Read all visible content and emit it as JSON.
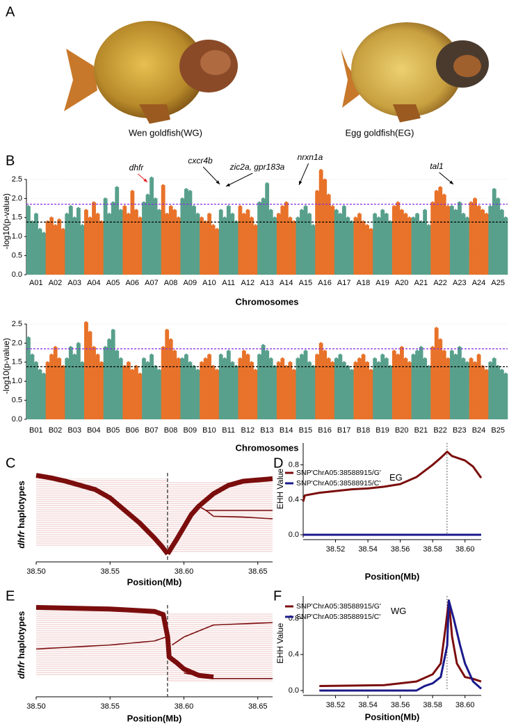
{
  "panels": [
    "A",
    "B",
    "C",
    "D",
    "E",
    "F"
  ],
  "photos": [
    {
      "caption": "Wen goldfish(WG)"
    },
    {
      "caption": "Egg goldfish(EG)"
    }
  ],
  "chart_data": [
    {
      "type": "manhattan",
      "xlabel": "Chromosomes",
      "ylabel": "-log10(p-value)",
      "colors": [
        "#58a08c",
        "#e8722a"
      ],
      "grid": true,
      "ylim": [
        0,
        2.8
      ],
      "yticks": [
        {
          "value": 0,
          "label": "0.0"
        },
        0.5,
        {
          "value": 1,
          "label": "1.0"
        },
        1.5,
        {
          "value": 2,
          "label": "2.0"
        },
        2.5
      ],
      "thresholds": [
        {
          "value": 1.85,
          "color": "#8a2be2"
        },
        {
          "value": 1.38,
          "color": "#000000"
        }
      ],
      "annotations": [
        {
          "text": "dhfr",
          "color": "#e31a1c"
        },
        {
          "text": "cxcr4b",
          "color": "#000000"
        },
        {
          "text": "zic2a, gpr183a",
          "color": "#000000"
        },
        {
          "text": "nrxn1a",
          "color": "#000000"
        },
        {
          "text": "tal1",
          "color": "#000000"
        }
      ],
      "categories": [
        "A01",
        "A02",
        "A03",
        "A04",
        "A05",
        "A06",
        "A07",
        "A08",
        "A09",
        "A10",
        "A11",
        "A12",
        "A13",
        "A14",
        "A15",
        "A16",
        "A17",
        "A18",
        "A19",
        "A20",
        "A21",
        "A22",
        "A23",
        "A24",
        "A25"
      ],
      "values": [
        [
          1.8,
          1.4,
          1.6,
          1.2,
          1.1
        ],
        [
          1.4,
          1.5,
          1.3,
          1.45,
          1.2
        ],
        [
          1.6,
          1.8,
          1.5,
          1.75,
          1.3
        ],
        [
          1.7,
          1.5,
          1.9,
          1.6,
          1.4
        ],
        [
          2.0,
          1.6,
          1.9,
          2.3,
          1.7
        ],
        [
          1.8,
          1.6,
          2.2,
          1.7,
          1.5
        ],
        [
          1.9,
          2.1,
          2.55,
          2.0,
          1.7
        ],
        [
          2.35,
          1.6,
          1.8,
          1.7,
          1.5
        ],
        [
          2.0,
          2.25,
          2.2,
          1.8,
          1.6
        ],
        [
          1.5,
          1.4,
          1.6,
          1.3,
          1.2
        ],
        [
          1.7,
          1.5,
          1.8,
          1.6,
          1.4
        ],
        [
          1.8,
          1.6,
          1.7,
          1.5,
          1.3
        ],
        [
          1.9,
          2.0,
          2.4,
          1.7,
          1.5
        ],
        [
          1.6,
          1.8,
          1.9,
          1.5,
          1.4
        ],
        [
          1.5,
          1.7,
          1.8,
          1.6,
          1.3
        ],
        [
          2.2,
          2.75,
          2.5,
          2.1,
          1.8
        ],
        [
          1.7,
          1.6,
          1.8,
          1.5,
          1.4
        ],
        [
          1.5,
          1.6,
          1.4,
          1.3,
          1.2
        ],
        [
          1.6,
          1.5,
          1.7,
          1.6,
          1.4
        ],
        [
          1.8,
          1.9,
          1.7,
          1.6,
          1.5
        ],
        [
          1.5,
          1.6,
          1.4,
          1.7,
          1.3
        ],
        [
          1.9,
          2.2,
          2.3,
          2.1,
          1.8
        ],
        [
          1.8,
          1.7,
          1.9,
          1.6,
          1.5
        ],
        [
          1.9,
          2.0,
          1.8,
          1.7,
          1.6
        ],
        [
          1.8,
          2.25,
          2.0,
          1.7,
          1.5
        ]
      ]
    },
    {
      "type": "manhattan",
      "xlabel": "Chromosomes",
      "ylabel": "-log10(p-value)",
      "colors": [
        "#58a08c",
        "#e8722a"
      ],
      "grid": true,
      "ylim": [
        0,
        2.8
      ],
      "yticks": [
        {
          "value": 0,
          "label": "0.0"
        },
        0.5,
        {
          "value": 1,
          "label": "1.0"
        },
        1.5,
        {
          "value": 2,
          "label": "2.0"
        },
        2.5
      ],
      "thresholds": [
        {
          "value": 1.85,
          "color": "#8a2be2"
        },
        {
          "value": 1.38,
          "color": "#000000"
        }
      ],
      "annotations": [],
      "categories": [
        "B01",
        "B02",
        "B03",
        "B04",
        "B05",
        "B06",
        "B07",
        "B08",
        "B09",
        "B10",
        "B11",
        "B12",
        "B13",
        "B14",
        "B15",
        "B16",
        "B17",
        "B18",
        "B19",
        "B20",
        "B21",
        "B22",
        "B23",
        "B24",
        "B25"
      ],
      "values": [
        [
          2.15,
          1.7,
          1.5,
          1.3,
          1.2
        ],
        [
          1.5,
          1.7,
          1.9,
          1.6,
          1.4
        ],
        [
          1.6,
          1.9,
          1.7,
          2.0,
          1.5
        ],
        [
          2.55,
          2.3,
          1.9,
          1.7,
          1.5
        ],
        [
          1.9,
          2.1,
          2.35,
          1.8,
          1.6
        ],
        [
          1.4,
          1.5,
          1.3,
          1.4,
          1.2
        ],
        [
          1.6,
          1.5,
          1.7,
          1.4,
          1.3
        ],
        [
          1.9,
          2.35,
          2.1,
          1.8,
          1.6
        ],
        [
          1.6,
          1.7,
          1.5,
          1.4,
          1.3
        ],
        [
          1.5,
          1.6,
          1.7,
          1.4,
          1.3
        ],
        [
          1.7,
          1.6,
          1.8,
          1.5,
          1.4
        ],
        [
          1.6,
          1.8,
          1.7,
          1.5,
          1.3
        ],
        [
          1.7,
          1.95,
          1.8,
          1.6,
          1.4
        ],
        [
          1.5,
          1.6,
          1.4,
          1.5,
          1.3
        ],
        [
          1.6,
          1.7,
          1.8,
          1.5,
          1.4
        ],
        [
          1.7,
          2.0,
          1.8,
          1.6,
          1.5
        ],
        [
          1.6,
          1.7,
          1.5,
          1.4,
          1.3
        ],
        [
          1.5,
          1.6,
          1.7,
          1.5,
          1.3
        ],
        [
          1.6,
          1.5,
          1.7,
          1.6,
          1.4
        ],
        [
          1.8,
          1.7,
          1.9,
          1.6,
          1.5
        ],
        [
          1.7,
          1.8,
          1.9,
          1.6,
          1.4
        ],
        [
          1.9,
          2.4,
          2.1,
          1.8,
          1.6
        ],
        [
          1.8,
          1.7,
          1.9,
          1.6,
          1.5
        ],
        [
          1.6,
          1.5,
          1.7,
          1.4,
          1.3
        ],
        [
          1.5,
          1.6,
          1.4,
          1.3,
          1.2
        ]
      ]
    },
    {
      "type": "haplotype",
      "xlabel": "Position(Mb)",
      "ylabel_gene": "dhfr",
      "ylabel": "haplotypes",
      "xlim": [
        38.5,
        38.66
      ],
      "ylim": [
        0,
        1
      ],
      "xticks": [
        {
          "value": 38.5,
          "label": "38.50"
        },
        38.55,
        {
          "value": 38.6,
          "label": "38.60"
        },
        38.65
      ],
      "vline": 38.5889,
      "series": [
        {
          "color": "#7b0d0d",
          "values": [
            0.97,
            0.94,
            0.9,
            0.85,
            0.8,
            0.7,
            0.55,
            0.4,
            0.22,
            0.12,
            0.03
          ],
          "x": [
            38.5,
            38.51,
            38.52,
            38.53,
            38.54,
            38.55,
            38.56,
            38.57,
            38.58,
            38.585,
            38.589
          ]
        },
        {
          "color": "#7b0d0d",
          "values": [
            0.03,
            0.2,
            0.35,
            0.5,
            0.6,
            0.75,
            0.85,
            0.9,
            0.93
          ],
          "x": [
            38.589,
            38.595,
            38.6,
            38.605,
            38.61,
            38.62,
            38.63,
            38.64,
            38.66
          ]
        },
        {
          "color": "#7b0d0d",
          "values": [
            0.6,
            0.55,
            0.55,
            0.55
          ],
          "x": [
            38.61,
            38.615,
            38.62,
            38.66
          ]
        },
        {
          "color": "#7b0d0d",
          "values": [
            0.55,
            0.48,
            0.47,
            0.45
          ],
          "x": [
            38.615,
            38.62,
            38.64,
            38.66
          ]
        }
      ]
    },
    {
      "type": "line",
      "xlabel": "Position(Mb)",
      "ylabel": "EHH Value",
      "group": "EG",
      "xlim": [
        38.5,
        38.61
      ],
      "ylim": [
        0,
        1.05
      ],
      "xticks": [
        38.52,
        38.54,
        38.56,
        38.58,
        {
          "value": 38.6,
          "label": "38.60"
        }
      ],
      "yticks": [
        {
          "value": 0,
          "label": "0.0"
        },
        0.4,
        0.8
      ],
      "vline": 38.5889,
      "series": [
        {
          "name": "SNP'ChrA05:38588915/G'",
          "color": "#7b0d0d",
          "values": [
            0.38,
            0.45,
            0.48,
            0.5,
            0.52,
            0.53,
            0.55,
            0.58,
            0.66,
            0.8,
            0.88,
            0.95,
            0.9,
            0.85,
            0.78,
            0.65
          ],
          "x": [
            38.5,
            38.501,
            38.51,
            38.52,
            38.53,
            38.54,
            38.55,
            38.56,
            38.57,
            38.58,
            38.585,
            38.589,
            38.592,
            38.6,
            38.605,
            38.61
          ]
        },
        {
          "name": "SNP'ChrA05:38588915/C'",
          "color": "#1a1a8c",
          "values": [
            0,
            0
          ],
          "x": [
            38.5,
            38.61
          ]
        }
      ]
    },
    {
      "type": "haplotype",
      "xlabel": "Position(Mb)",
      "ylabel_gene": "dhfr",
      "ylabel": "haplotypes",
      "xlim": [
        38.5,
        38.66
      ],
      "ylim": [
        0,
        1
      ],
      "xticks": [
        {
          "value": 38.5,
          "label": "38.50"
        },
        38.55,
        {
          "value": 38.6,
          "label": "38.60"
        },
        38.65
      ],
      "vline": 38.5889,
      "series": [
        {
          "color": "#7b0d0d",
          "values": [
            0.97,
            0.95,
            0.92,
            0.88,
            0.6,
            0.35,
            0.28,
            0.2,
            0.12,
            0.1
          ],
          "x": [
            38.5,
            38.55,
            38.58,
            38.586,
            38.589,
            38.59,
            38.595,
            38.6,
            38.61,
            38.62
          ]
        },
        {
          "color": "#7b0d0d",
          "values": [
            0.45,
            0.5,
            0.55,
            0.6
          ],
          "x": [
            38.5,
            38.55,
            38.58,
            38.588
          ]
        },
        {
          "color": "#7b0d0d",
          "values": [
            0.5,
            0.6,
            0.75,
            0.78
          ],
          "x": [
            38.592,
            38.6,
            38.62,
            38.66
          ]
        },
        {
          "color": "#7b0d0d",
          "values": [
            0.15,
            0.08,
            0.08
          ],
          "x": [
            38.6,
            38.62,
            38.66
          ]
        }
      ]
    },
    {
      "type": "line",
      "xlabel": "Position(Mb)",
      "ylabel": "EHH Value",
      "group": "WG",
      "xlim": [
        38.5,
        38.61
      ],
      "ylim": [
        0,
        1.05
      ],
      "xticks": [
        38.52,
        38.54,
        38.56,
        38.58,
        {
          "value": 38.6,
          "label": "38.60"
        }
      ],
      "yticks": [
        {
          "value": 0,
          "label": "0.0"
        },
        0.4,
        0.8
      ],
      "vline": 38.5889,
      "series": [
        {
          "name": "SNP'ChrA05:38588915/G'",
          "color": "#7b0d0d",
          "values": [
            0.05,
            0.06,
            0.1,
            0.18,
            0.3,
            0.7,
            1.0,
            0.6,
            0.3,
            0.15,
            0.13,
            0.1
          ],
          "x": [
            38.51,
            38.55,
            38.57,
            38.58,
            38.585,
            38.588,
            38.59,
            38.592,
            38.595,
            38.6,
            38.605,
            38.61
          ]
        },
        {
          "name": "SNP'ChrA05:38588915/C'",
          "color": "#1a1a8c",
          "values": [
            0,
            0,
            0.05,
            0.08,
            0.15,
            0.5,
            1.0,
            0.8,
            0.5,
            0.3,
            0.1,
            0.02
          ],
          "x": [
            38.51,
            38.57,
            38.575,
            38.58,
            38.585,
            38.589,
            38.59,
            38.593,
            38.597,
            38.6,
            38.605,
            38.61
          ]
        }
      ]
    }
  ]
}
